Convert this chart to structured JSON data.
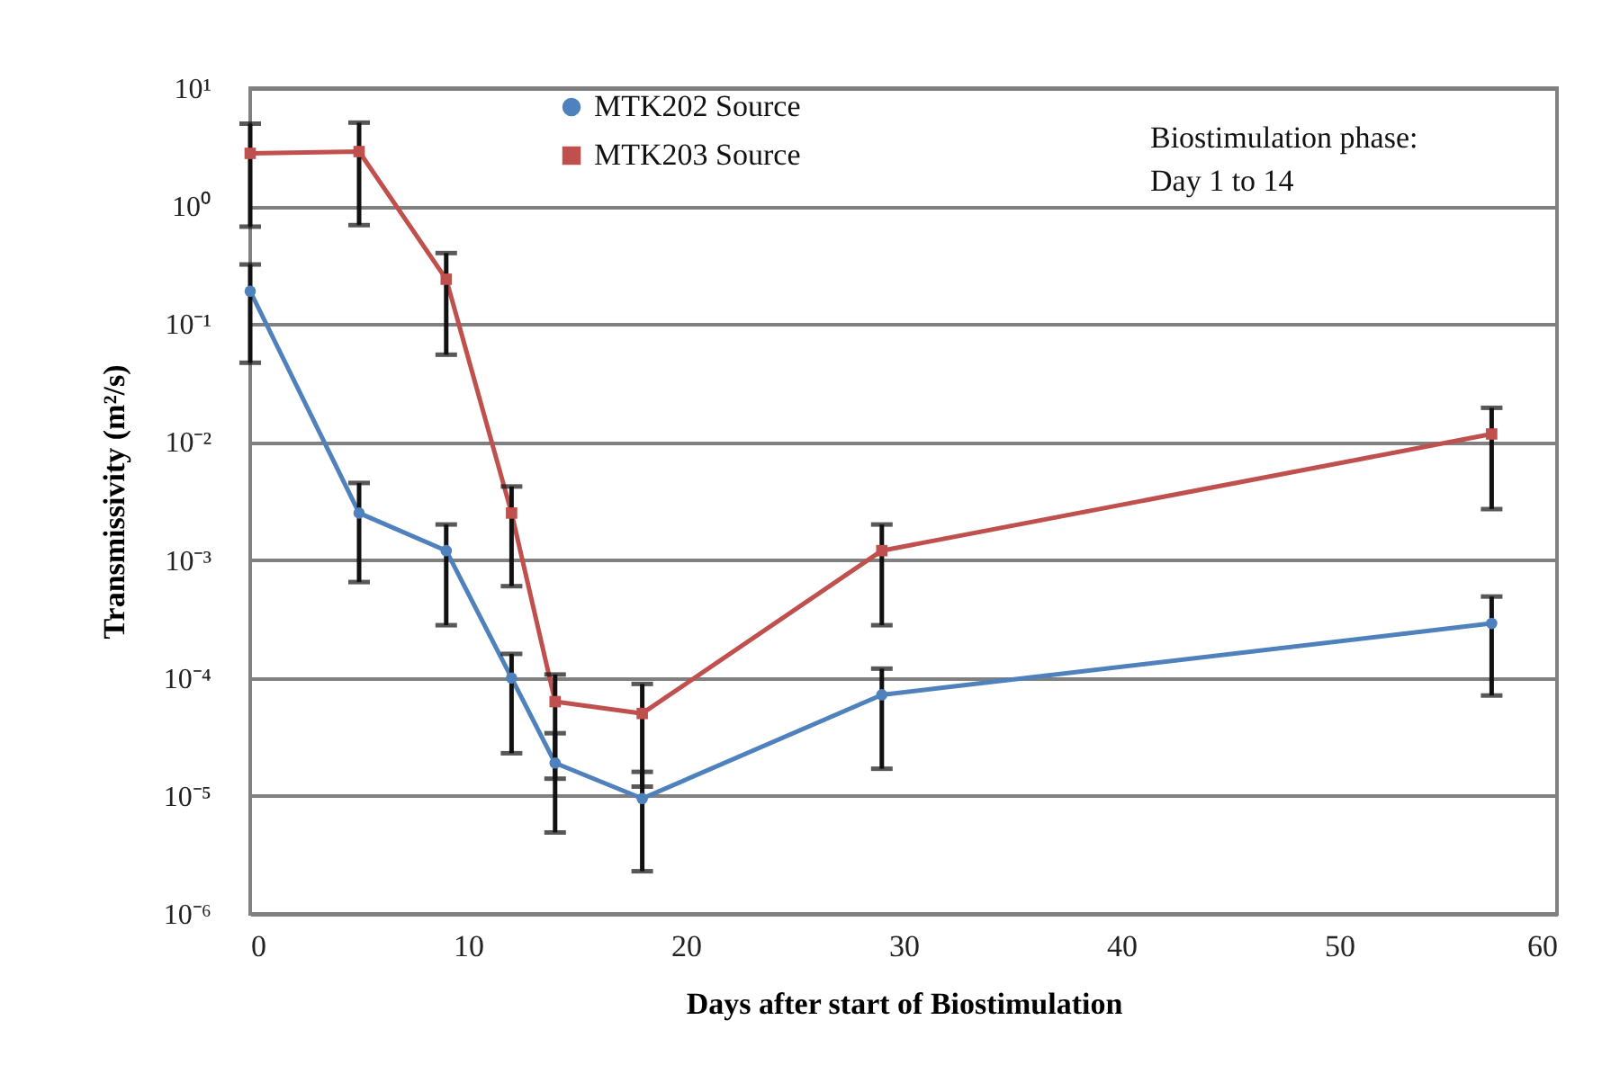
{
  "chart_data": {
    "type": "line",
    "xlabel": "Days after start of Biostimulation",
    "ylabel": "Transmissivity (m²/s)",
    "x": [
      0,
      5,
      9,
      12,
      14,
      18,
      29,
      57
    ],
    "series": [
      {
        "name": "MTK202 Source",
        "color": "#4f81bd",
        "marker": "circle",
        "values": [
          0.19,
          0.0025,
          0.0012,
          0.0001,
          1.9e-05,
          9.5e-06,
          7.2e-05,
          0.00029
        ],
        "errors": [
          [
            0.047,
            0.32
          ],
          [
            0.00065,
            0.0045
          ],
          [
            0.00028,
            0.002
          ],
          [
            2.3e-05,
            0.00016
          ],
          [
            4.9e-06,
            3.4e-05
          ],
          [
            2.3e-06,
            1.6e-05
          ],
          [
            1.7e-05,
            0.00012
          ],
          [
            7.1e-05,
            0.00049
          ]
        ]
      },
      {
        "name": "MTK203 Source",
        "color": "#c0504d",
        "marker": "square",
        "values": [
          2.8,
          2.9,
          0.24,
          0.0025,
          6.3e-05,
          5e-05,
          0.0012,
          0.0117
        ],
        "errors": [
          [
            0.67,
            5
          ],
          [
            0.69,
            5.1
          ],
          [
            0.055,
            0.4
          ],
          [
            0.0006,
            0.0042
          ],
          [
            1.4e-05,
            0.000107
          ],
          [
            1.2e-05,
            8.9e-05
          ],
          [
            0.00028,
            0.002
          ],
          [
            0.0027,
            0.0195
          ]
        ]
      }
    ],
    "log": true,
    "xlim": [
      0,
      60
    ],
    "xticks": [
      0,
      10,
      20,
      30,
      40,
      50,
      60
    ],
    "ylim": [
      1e-06,
      10
    ],
    "yticks": [
      {
        "value": 1e-06,
        "label": "10⁻⁶"
      },
      {
        "value": 1e-05,
        "label": "10⁻⁵"
      },
      {
        "value": 0.0001,
        "label": "10⁻⁴"
      },
      {
        "value": 0.001,
        "label": "10⁻³"
      },
      {
        "value": 0.01,
        "label": "10⁻²"
      },
      {
        "value": 0.1,
        "label": "10⁻¹"
      },
      {
        "value": 1,
        "label": "10⁰"
      },
      {
        "value": 10,
        "label": "10¹"
      }
    ],
    "grid": "y",
    "legend": "top",
    "line_style": "solid",
    "annotations": [
      "Biostimulation phase:\nDay 1 to 14"
    ]
  }
}
